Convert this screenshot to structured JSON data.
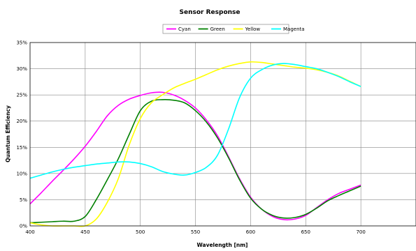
{
  "chart_data": {
    "type": "line",
    "title": "Sensor Response",
    "xlabel": "Wavelength [nm]",
    "ylabel": "Quantum Efficiency",
    "xlim": [
      400,
      750
    ],
    "ylim": [
      0,
      35
    ],
    "x_ticks": [
      "400",
      "450",
      "500",
      "550",
      "600",
      "650",
      "700"
    ],
    "y_ticks": [
      "0%",
      "5%",
      "10%",
      "15%",
      "20%",
      "25%",
      "30%",
      "35%"
    ],
    "grid": true,
    "legend_position": "top-center",
    "series": [
      {
        "name": "Cyan",
        "color": "#ff00ff",
        "x": [
          400,
          410,
          420,
          430,
          440,
          450,
          460,
          470,
          480,
          490,
          500,
          510,
          520,
          530,
          540,
          550,
          560,
          570,
          580,
          590,
          600,
          610,
          620,
          630,
          640,
          650,
          660,
          670,
          680,
          690,
          700
        ],
        "y": [
          4.2,
          6.3,
          8.5,
          10.6,
          12.8,
          15.2,
          18.0,
          21.0,
          23.0,
          24.2,
          24.9,
          25.4,
          25.5,
          25.0,
          24.0,
          22.5,
          20.2,
          17.2,
          13.2,
          9.0,
          5.5,
          3.2,
          1.8,
          1.2,
          1.3,
          2.0,
          3.5,
          5.0,
          6.2,
          7.0,
          7.8
        ]
      },
      {
        "name": "Green",
        "color": "#008000",
        "x": [
          400,
          410,
          420,
          430,
          440,
          450,
          460,
          470,
          480,
          490,
          500,
          510,
          520,
          530,
          540,
          550,
          560,
          570,
          580,
          590,
          600,
          610,
          620,
          630,
          640,
          650,
          660,
          670,
          680,
          690,
          700
        ],
        "y": [
          0.6,
          0.7,
          0.8,
          0.9,
          0.9,
          1.8,
          5.0,
          8.8,
          12.8,
          17.5,
          22.0,
          23.8,
          24.1,
          24.0,
          23.5,
          22.0,
          19.8,
          16.8,
          13.0,
          8.8,
          5.3,
          3.2,
          2.0,
          1.5,
          1.6,
          2.2,
          3.4,
          4.8,
          5.8,
          6.7,
          7.6
        ]
      },
      {
        "name": "Yellow",
        "color": "#ffff00",
        "x": [
          400,
          410,
          420,
          430,
          440,
          450,
          460,
          470,
          480,
          490,
          500,
          510,
          520,
          530,
          540,
          550,
          560,
          570,
          580,
          590,
          600,
          610,
          620,
          630,
          640,
          650,
          660,
          670,
          680,
          690,
          700
        ],
        "y": [
          0.6,
          0.2,
          0.0,
          0.0,
          0.0,
          0.0,
          1.3,
          4.5,
          9.0,
          15.5,
          20.5,
          23.5,
          25.0,
          26.3,
          27.2,
          28.0,
          28.9,
          29.8,
          30.5,
          31.0,
          31.3,
          31.2,
          30.9,
          30.6,
          30.3,
          30.1,
          29.8,
          29.3,
          28.6,
          27.6,
          26.6
        ]
      },
      {
        "name": "Magenta",
        "color": "#00ffff",
        "x": [
          400,
          410,
          420,
          430,
          440,
          450,
          460,
          470,
          480,
          490,
          500,
          510,
          520,
          530,
          540,
          550,
          560,
          570,
          580,
          590,
          600,
          610,
          620,
          630,
          640,
          650,
          660,
          670,
          680,
          690,
          700
        ],
        "y": [
          9.1,
          9.7,
          10.3,
          10.8,
          11.2,
          11.5,
          11.8,
          12.0,
          12.2,
          12.2,
          11.9,
          11.3,
          10.4,
          9.9,
          9.7,
          10.2,
          11.2,
          13.5,
          18.5,
          24.5,
          28.2,
          29.8,
          30.7,
          31.0,
          30.8,
          30.4,
          30.0,
          29.3,
          28.5,
          27.5,
          26.6
        ]
      }
    ]
  }
}
